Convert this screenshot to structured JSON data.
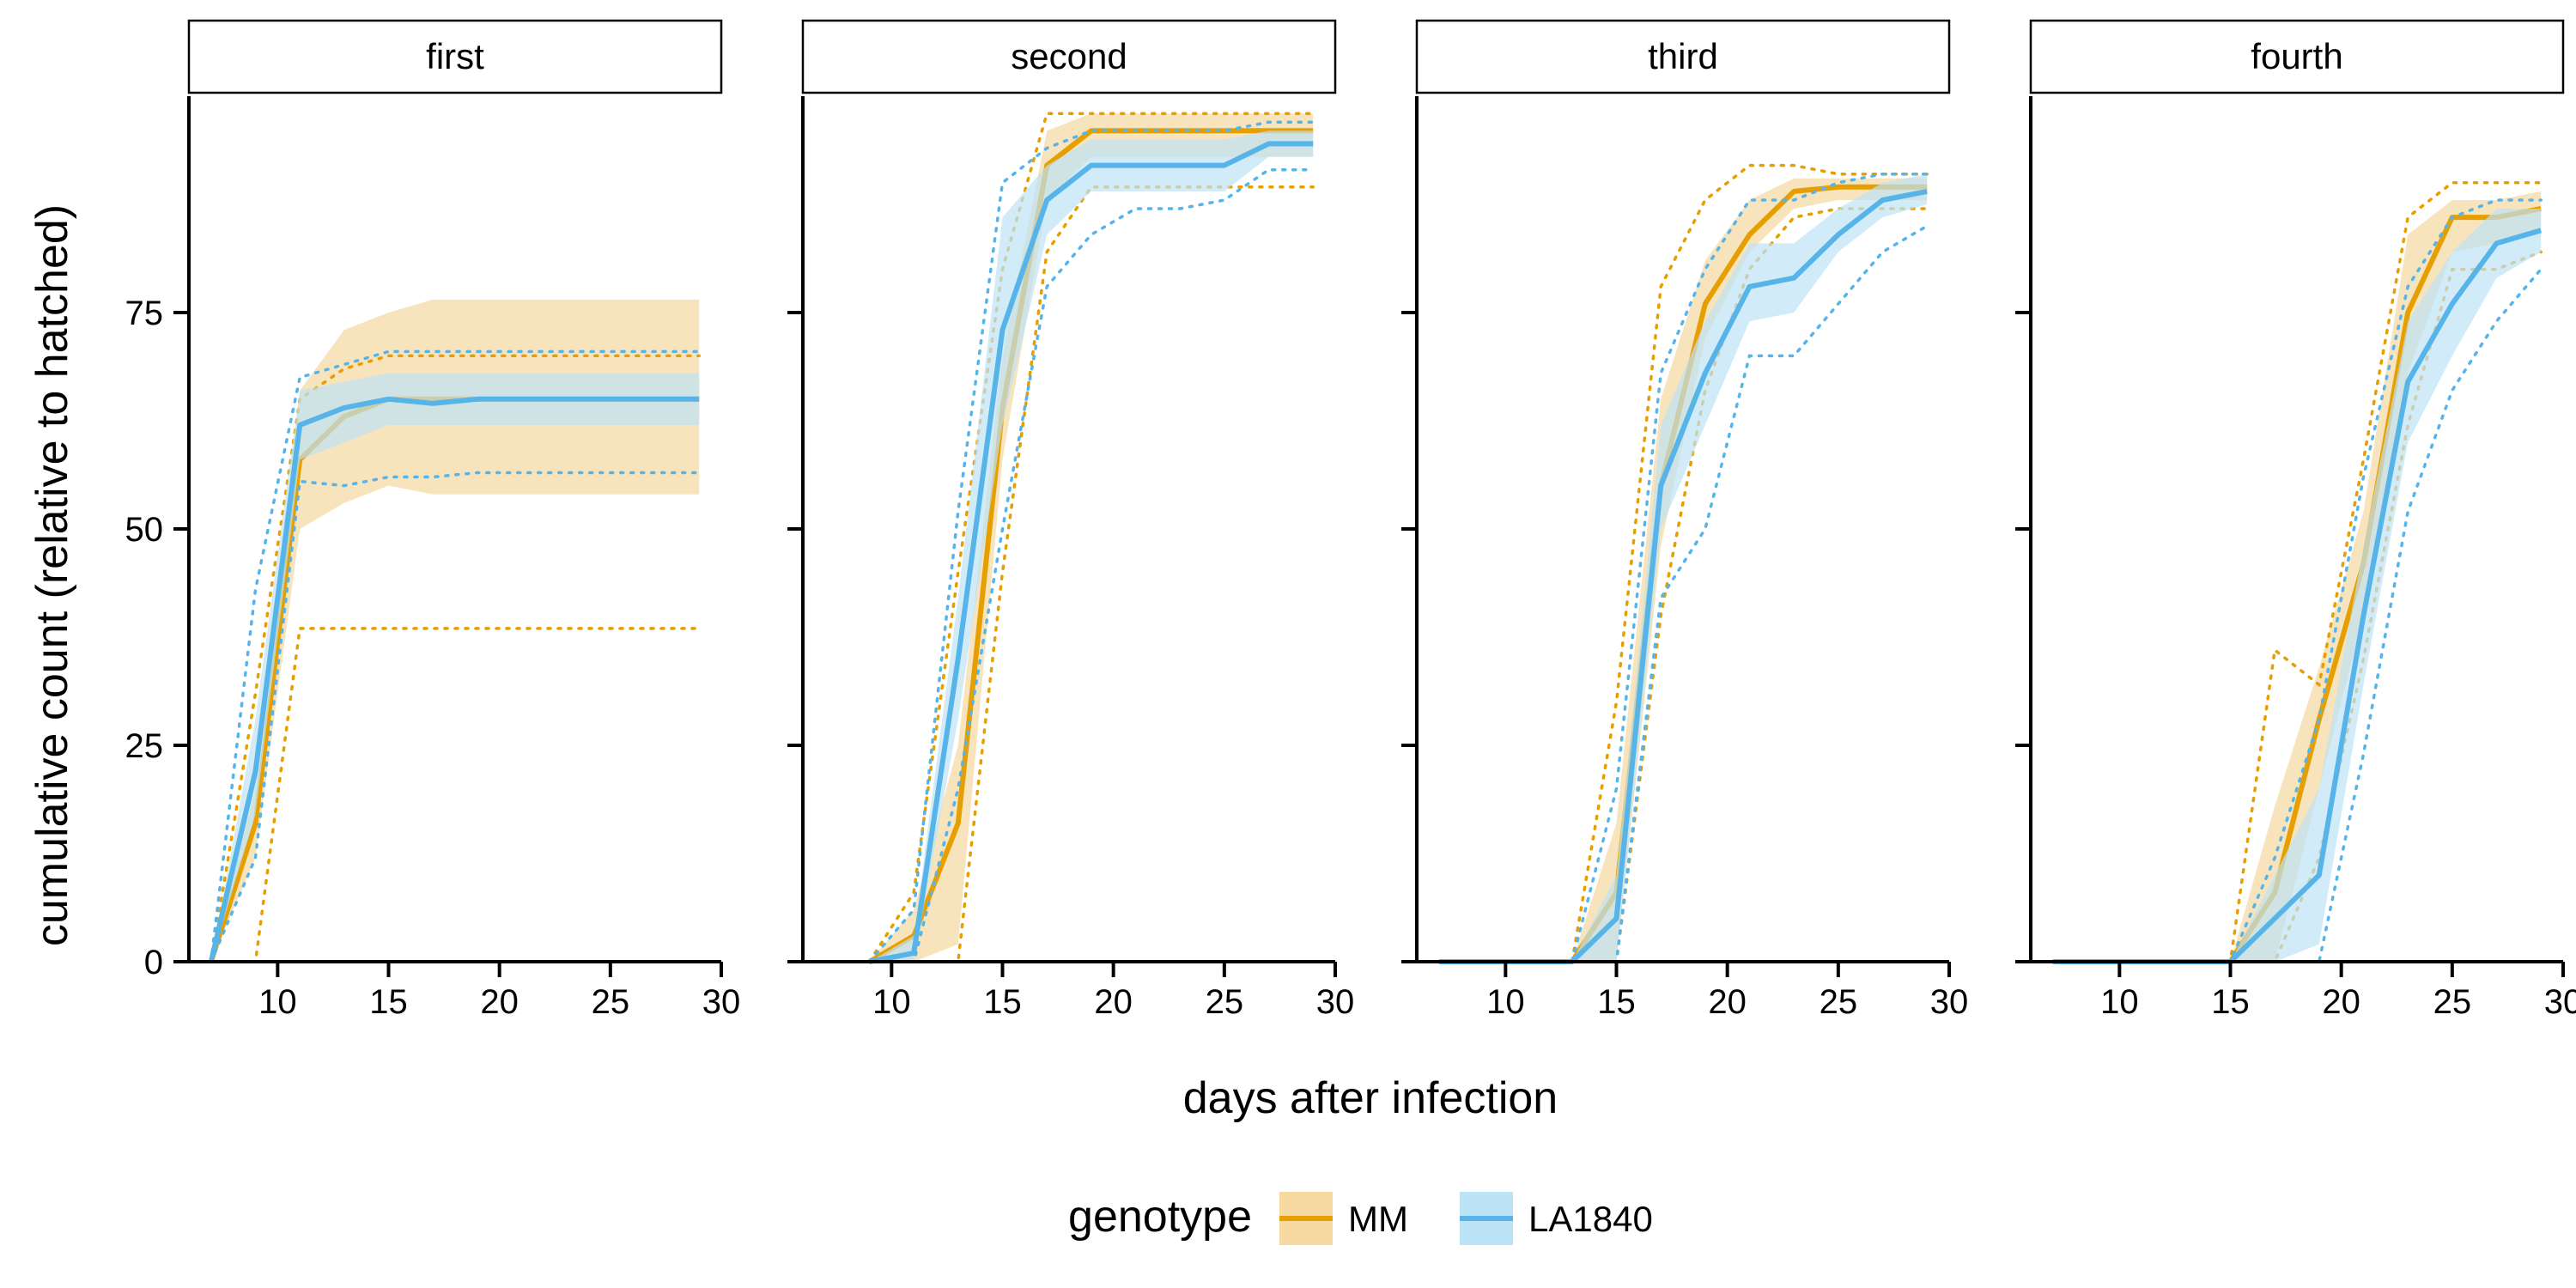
{
  "chart_data": {
    "type": "line",
    "xlabel": "days after infection",
    "ylabel": "cumulative count (relative to hatched)",
    "xlim": [
      6,
      30
    ],
    "ylim": [
      0,
      100
    ],
    "x_ticks": [
      10,
      15,
      20,
      25,
      30
    ],
    "y_ticks": [
      0,
      25,
      50,
      75
    ],
    "grid": false,
    "legend": {
      "position": "bottom",
      "title": "genotype",
      "entries": [
        {
          "name": "MM",
          "color": "#E69F00",
          "fill": "#F5D9A0"
        },
        {
          "name": "LA1840",
          "color": "#56B4E9",
          "fill": "#BDE3F7"
        }
      ]
    },
    "panels": [
      {
        "title": "first",
        "series": [
          {
            "name": "MM",
            "x": [
              7,
              9,
              11,
              13,
              15,
              17,
              19,
              21,
              23,
              25,
              27,
              29
            ],
            "mean": [
              0,
              16,
              58,
              63,
              65,
              65,
              65,
              65,
              65,
              65,
              65,
              65
            ],
            "lower": [
              0,
              12,
              50,
              53,
              55,
              54,
              54,
              54,
              54,
              54,
              54,
              54
            ],
            "upper": [
              0,
              20,
              66,
              73,
              75,
              76.5,
              76.5,
              76.5,
              76.5,
              76.5,
              76.5,
              76.5
            ],
            "min": [
              0,
              0,
              38.5,
              38.5,
              38.5,
              38.5,
              38.5,
              38.5,
              38.5,
              38.5,
              38.5,
              38.5
            ],
            "max": [
              0,
              31,
              65,
              68.5,
              70,
              70,
              70,
              70,
              70,
              70,
              70,
              70
            ]
          },
          {
            "name": "LA1840",
            "x": [
              7,
              9,
              11,
              13,
              15,
              17,
              19,
              21,
              23,
              25,
              27,
              29
            ],
            "mean": [
              0,
              22,
              62,
              64,
              65,
              64.5,
              65,
              65,
              65,
              65,
              65,
              65
            ],
            "lower": [
              0,
              17,
              58,
              60,
              62,
              62,
              62,
              62,
              62,
              62,
              62,
              62
            ],
            "upper": [
              0,
              28,
              66,
              67,
              68,
              68,
              68,
              68,
              68,
              68,
              68,
              68
            ],
            "min": [
              0,
              12,
              55.5,
              55,
              56,
              56,
              56.5,
              56.5,
              56.5,
              56.5,
              56.5,
              56.5
            ],
            "max": [
              0,
              43,
              67.5,
              69,
              70.5,
              70.5,
              70.5,
              70.5,
              70.5,
              70.5,
              70.5,
              70.5
            ]
          }
        ]
      },
      {
        "title": "second",
        "series": [
          {
            "name": "MM",
            "x": [
              9,
              11,
              13,
              15,
              17,
              19,
              21,
              23,
              25,
              27,
              29
            ],
            "mean": [
              0,
              3,
              16,
              64,
              92,
              96,
              96,
              96,
              96,
              96,
              96
            ],
            "lower": [
              0,
              0,
              2,
              58,
              88,
              93,
              93,
              93,
              93,
              93,
              93
            ],
            "upper": [
              0,
              6,
              25,
              70,
              96,
              98,
              98,
              98,
              98,
              98,
              98
            ],
            "min": [
              0,
              0,
              0,
              45,
              82,
              89.5,
              89.5,
              89.5,
              89.5,
              89.5,
              89.5
            ],
            "max": [
              0,
              8,
              45,
              80,
              98,
              98,
              98,
              98,
              98,
              98,
              98
            ]
          },
          {
            "name": "LA1840",
            "x": [
              9,
              11,
              13,
              15,
              17,
              19,
              21,
              23,
              25,
              27,
              29
            ],
            "mean": [
              0,
              1,
              35,
              73,
              88,
              92,
              92,
              92,
              92,
              94.5,
              94.5
            ],
            "lower": [
              0,
              0,
              28,
              62,
              84,
              89,
              89,
              89,
              89,
              93,
              93
            ],
            "upper": [
              0,
              3,
              42,
              86,
              92,
              95,
              95,
              95,
              95,
              96,
              96
            ],
            "min": [
              0,
              0,
              20,
              50,
              78,
              84,
              87,
              87,
              88,
              91.5,
              91.5
            ],
            "max": [
              0,
              6,
              52,
              90,
              94,
              96,
              96,
              96,
              96,
              97,
              97
            ]
          }
        ]
      },
      {
        "title": "third",
        "series": [
          {
            "name": "MM",
            "x": [
              7,
              9,
              11,
              13,
              15,
              17,
              19,
              21,
              23,
              25,
              27,
              29
            ],
            "mean": [
              0,
              0,
              0,
              0,
              8,
              55,
              76,
              84,
              89,
              89.5,
              89.5,
              89.5
            ],
            "lower": [
              0,
              0,
              0,
              0,
              0,
              48,
              72,
              82,
              87,
              88,
              88,
              88
            ],
            "upper": [
              0,
              0,
              0,
              0,
              16,
              65,
              81,
              88,
              90.5,
              90.5,
              90.5,
              90.5
            ],
            "min": [
              0,
              0,
              0,
              0,
              0,
              40,
              66,
              80,
              86,
              87,
              87,
              87
            ],
            "max": [
              0,
              0,
              0,
              0,
              30,
              78,
              88,
              92,
              92,
              91,
              91,
              91
            ]
          },
          {
            "name": "LA1840",
            "x": [
              7,
              9,
              11,
              13,
              15,
              17,
              19,
              21,
              23,
              25,
              27,
              29
            ],
            "mean": [
              0,
              0,
              0,
              0,
              5,
              55,
              68,
              78,
              79,
              84,
              88,
              89
            ],
            "lower": [
              0,
              0,
              0,
              0,
              0,
              50,
              62,
              74,
              75,
              82,
              86,
              87.5
            ],
            "upper": [
              0,
              0,
              0,
              0,
              10,
              62,
              74,
              83,
              83,
              87,
              90,
              91
            ],
            "min": [
              0,
              0,
              0,
              0,
              0,
              42,
              50,
              70,
              70,
              76,
              82,
              85
            ],
            "max": [
              0,
              0,
              0,
              0,
              20,
              68,
              80,
              88,
              88,
              90,
              91,
              91
            ]
          }
        ]
      },
      {
        "title": "fourth",
        "series": [
          {
            "name": "MM",
            "x": [
              7,
              9,
              11,
              13,
              15,
              17,
              19,
              21,
              23,
              25,
              27,
              29
            ],
            "mean": [
              0,
              0,
              0,
              0,
              0,
              8,
              28,
              46,
              75,
              86,
              86,
              87
            ],
            "lower": [
              0,
              0,
              0,
              0,
              0,
              0,
              20,
              40,
              68,
              82,
              83,
              84
            ],
            "upper": [
              0,
              0,
              0,
              0,
              0,
              18,
              34,
              52,
              84,
              88,
              88,
              89
            ],
            "min": [
              0,
              0,
              0,
              0,
              0,
              0,
              12,
              35,
              62,
              80,
              80,
              82
            ],
            "max": [
              0,
              0,
              0,
              0,
              0,
              36,
              32,
              58,
              86,
              90,
              90,
              90
            ]
          },
          {
            "name": "LA1840",
            "x": [
              7,
              9,
              11,
              13,
              15,
              17,
              19,
              21,
              23,
              25,
              27,
              29
            ],
            "mean": [
              0,
              0,
              0,
              0,
              0,
              5,
              10,
              40,
              67,
              76,
              83,
              84.5
            ],
            "lower": [
              0,
              0,
              0,
              0,
              0,
              0,
              2,
              32,
              60,
              70,
              79,
              82
            ],
            "upper": [
              0,
              0,
              0,
              0,
              0,
              10,
              20,
              48,
              74,
              82,
              87,
              87
            ],
            "min": [
              0,
              0,
              0,
              0,
              0,
              0,
              0,
              24,
              52,
              66,
              74,
              80
            ],
            "max": [
              0,
              0,
              0,
              0,
              0,
              12,
              28,
              56,
              78,
              86,
              88,
              88
            ]
          }
        ]
      }
    ]
  }
}
